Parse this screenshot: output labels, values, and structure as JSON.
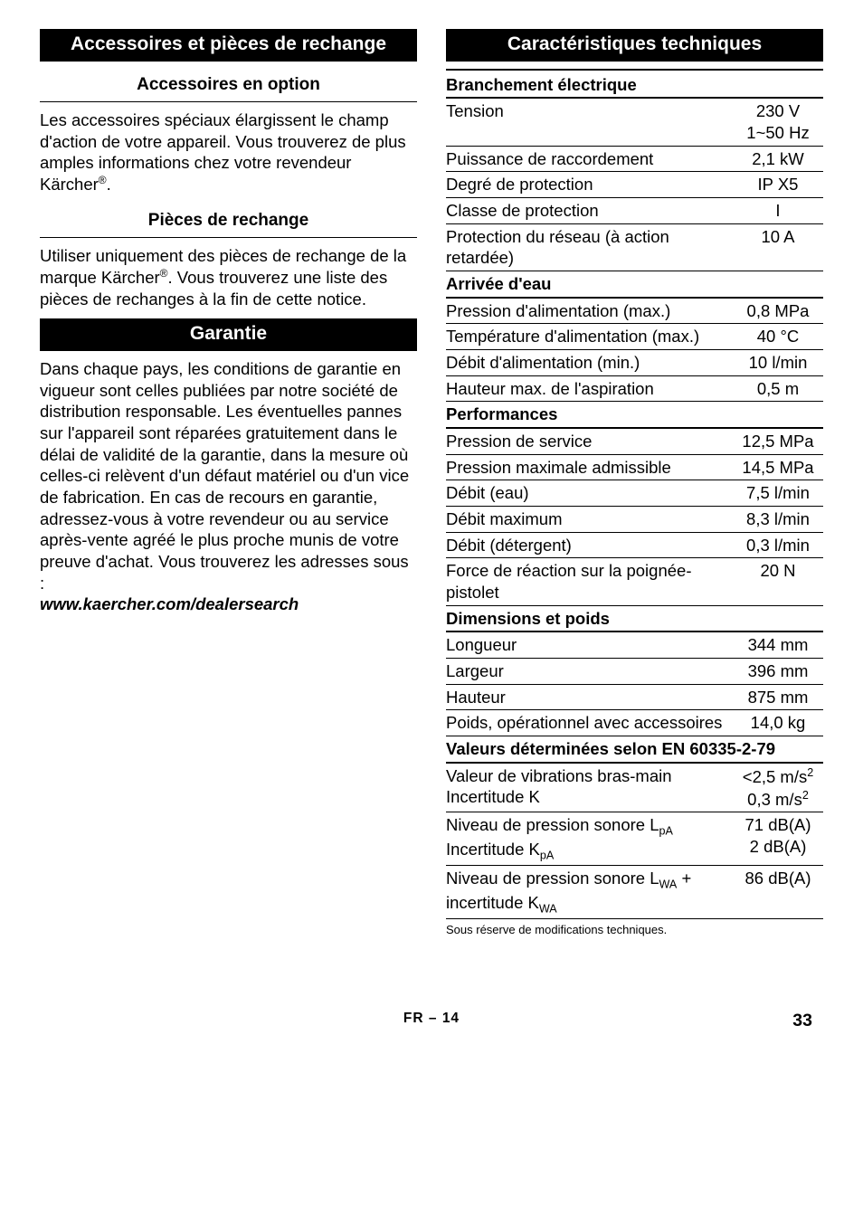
{
  "left": {
    "h1": "Accessoires et pièces de rechange",
    "sub1": "Accessoires en option",
    "p1a": "Les accessoires spéciaux élargissent le champ d'action de votre appareil. Vous trouverez de plus amples informations chez votre revendeur Kärcher",
    "p1b": ".",
    "sub2": "Pièces de rechange",
    "p2a": "Utiliser uniquement des pièces de rechange de la marque Kärcher",
    "p2b": ". Vous trouverez une liste des pièces de rechanges à la fin de cette notice.",
    "h2": "Garantie",
    "p3": "Dans chaque pays, les conditions de garantie en vigueur sont celles publiées par notre société de distribution responsable. Les éventuelles pannes sur l'appareil sont réparées gratuitement dans le délai de validité de la garantie, dans la mesure où celles-ci relèvent d'un défaut matériel ou d'un vice de fabrication. En cas de recours en garantie, adressez-vous à votre revendeur ou au service après-vente agréé le plus proche munis de votre preuve d'achat. Vous trouverez les adresses sous :",
    "p3link": "www.kaercher.com/dealersearch"
  },
  "right": {
    "h1": "Caractéristiques techniques",
    "sections": [
      {
        "section": "Branchement électrique"
      },
      {
        "label": "Tension",
        "value": "230 V\n1~50 Hz"
      },
      {
        "label": "Puissance de raccordement",
        "value": "2,1 kW"
      },
      {
        "label": "Degré de protection",
        "value": "IP X5"
      },
      {
        "label": "Classe de protection",
        "value": "I"
      },
      {
        "label": "Protection du réseau (à action retardée)",
        "value": "10 A"
      },
      {
        "section": "Arrivée d'eau"
      },
      {
        "label": "Pression d'alimentation (max.)",
        "value": "0,8 MPa"
      },
      {
        "label": "Température d'alimentation (max.)",
        "value": "40 °C"
      },
      {
        "label": "Débit d'alimentation (min.)",
        "value": "10 l/min"
      },
      {
        "label": "Hauteur max. de l'aspiration",
        "value": "0,5 m"
      },
      {
        "section": "Performances"
      },
      {
        "label": "Pression de service",
        "value": "12,5 MPa"
      },
      {
        "label": "Pression maximale admissible",
        "value": "14,5 MPa"
      },
      {
        "label": "Débit (eau)",
        "value": "7,5 l/min"
      },
      {
        "label": "Débit maximum",
        "value": "8,3 l/min"
      },
      {
        "label": "Débit (détergent)",
        "value": "0,3 l/min"
      },
      {
        "label": "Force de réaction sur la poignée-pistolet",
        "value": "20 N"
      },
      {
        "section": "Dimensions et poids"
      },
      {
        "label": "Longueur",
        "value": "344 mm"
      },
      {
        "label": "Largeur",
        "value": "396 mm"
      },
      {
        "label": "Hauteur",
        "value": "875 mm"
      },
      {
        "label": "Poids, opérationnel avec accessoires",
        "value": "14,0 kg"
      },
      {
        "section": "Valeurs déterminées selon EN 60335-2-79"
      },
      {
        "label_html": "Valeur de vibrations bras-main<br>Incertitude K",
        "value_html": "&lt;2,5 m/s<span class='sup'>2</span><br>0,3 m/s<span class='sup'>2</span>"
      },
      {
        "label_html": "Niveau de pression sonore L<span class='sub'>pA</span><br>Incertitude K<span class='sub'>pA</span>",
        "value_html": "71 dB(A)<br>2 dB(A)"
      },
      {
        "label_html": "Niveau de pression sonore L<span class='sub'>WA</span> + incertitude K<span class='sub'>WA</span>",
        "value": "86 dB(A)"
      }
    ],
    "fine": "Sous réserve de modifications techniques."
  },
  "footer": {
    "center": "FR – 14",
    "pageno": "33"
  }
}
